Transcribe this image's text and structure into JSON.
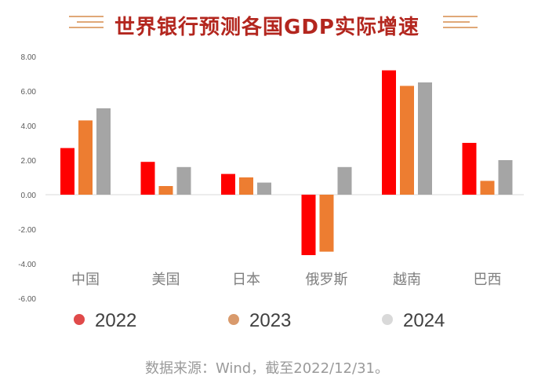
{
  "chart_data": {
    "type": "bar",
    "title": "世界银行预测各国GDP实际增速",
    "categories": [
      "中国",
      "美国",
      "日本",
      "俄罗斯",
      "越南",
      "巴西"
    ],
    "series": [
      {
        "name": "2022",
        "color": "#ff0000",
        "values": [
          2.7,
          1.9,
          1.2,
          -3.5,
          7.2,
          3.0
        ]
      },
      {
        "name": "2023",
        "color": "#ed7d31",
        "values": [
          4.3,
          0.5,
          1.0,
          -3.3,
          6.3,
          0.8
        ]
      },
      {
        "name": "2024",
        "color": "#a5a5a5",
        "values": [
          5.0,
          1.6,
          0.7,
          1.6,
          6.5,
          2.0
        ]
      }
    ],
    "ylim": [
      -6,
      8
    ],
    "yticks": [
      "8.00",
      "6.00",
      "4.00",
      "2.00",
      "0.00",
      "-2.00",
      "-4.00",
      "-6.00"
    ],
    "legend_colors": [
      "#e04a4a",
      "#d99a6c",
      "#d9d9d9"
    ],
    "legend_position": "bottom",
    "grid": false
  },
  "source_note": "数据来源：Wind，截至2022/12/31。"
}
